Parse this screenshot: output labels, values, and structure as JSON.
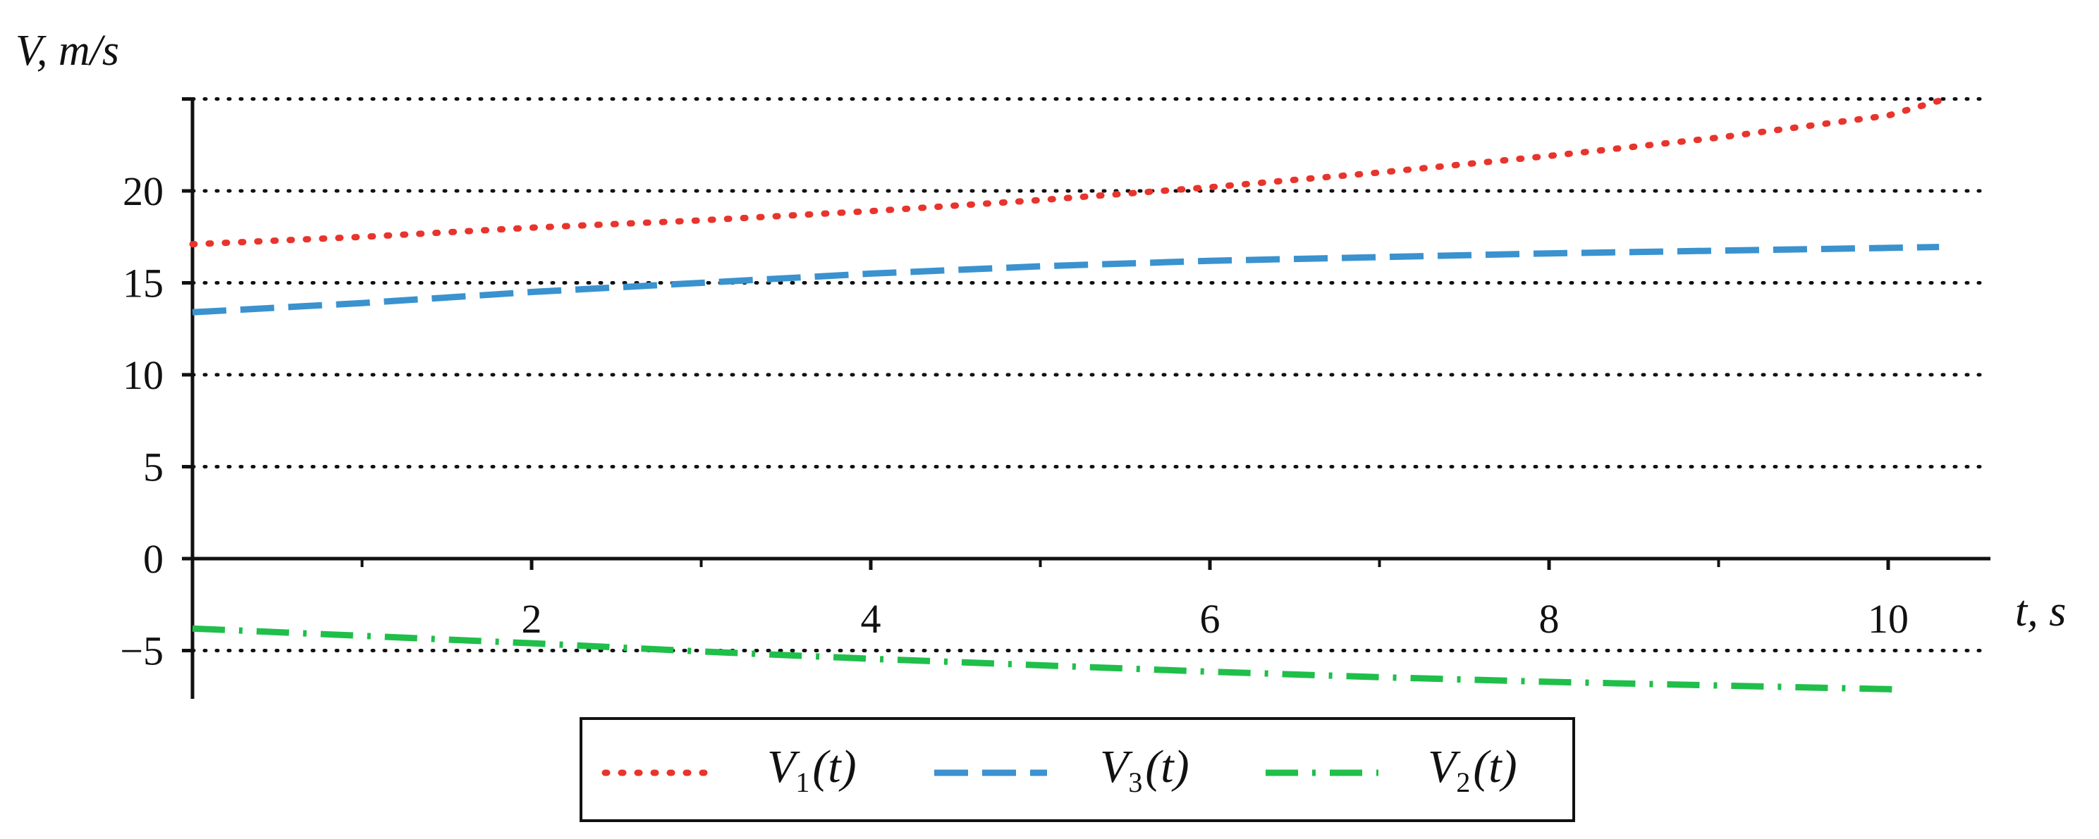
{
  "chart_data": {
    "type": "line",
    "xlabel": "t, s",
    "ylabel": "V, m/s",
    "xlim": [
      0,
      10.3
    ],
    "ylim": [
      -7.5,
      25
    ],
    "x_ticks": [
      2,
      4,
      6,
      8,
      10
    ],
    "x_minor_ticks": [
      1,
      3,
      5,
      7,
      9
    ],
    "y_ticks": [
      -5,
      0,
      5,
      10,
      15,
      20
    ],
    "y_gridlines": [
      -5,
      5,
      10,
      15,
      20,
      25
    ],
    "grid": "horizontal dotted",
    "legend_position": "bottom-center",
    "series": [
      {
        "name": "V1(t)",
        "legend_main": "V",
        "legend_sub": "1",
        "legend_tail": "(t)",
        "color": "#e8342c",
        "style": "dotted",
        "x": [
          0,
          1,
          2,
          3,
          4,
          5,
          6,
          7,
          8,
          9,
          10,
          10.3
        ],
        "values": [
          17.1,
          17.5,
          18.0,
          18.4,
          18.9,
          19.5,
          20.2,
          21.0,
          21.9,
          22.9,
          24.1,
          24.9
        ]
      },
      {
        "name": "V3(t)",
        "legend_main": "V",
        "legend_sub": "3",
        "legend_tail": "(t)",
        "color": "#3a92cf",
        "style": "dashed",
        "x": [
          0,
          1,
          2,
          3,
          4,
          5,
          6,
          7,
          8,
          9,
          10,
          10.3
        ],
        "values": [
          13.4,
          13.9,
          14.5,
          15.0,
          15.5,
          15.9,
          16.2,
          16.4,
          16.6,
          16.75,
          16.9,
          16.95
        ]
      },
      {
        "name": "V2(t)",
        "legend_main": "V",
        "legend_sub": "2",
        "legend_tail": "(t)",
        "color": "#1fbf4a",
        "style": "dash-dot",
        "x": [
          0,
          1,
          2,
          3,
          4,
          5,
          6,
          7,
          8,
          9,
          10,
          10.1
        ],
        "values": [
          -3.8,
          -4.2,
          -4.6,
          -5.05,
          -5.45,
          -5.8,
          -6.15,
          -6.45,
          -6.7,
          -6.9,
          -7.1,
          -7.15
        ]
      }
    ]
  }
}
